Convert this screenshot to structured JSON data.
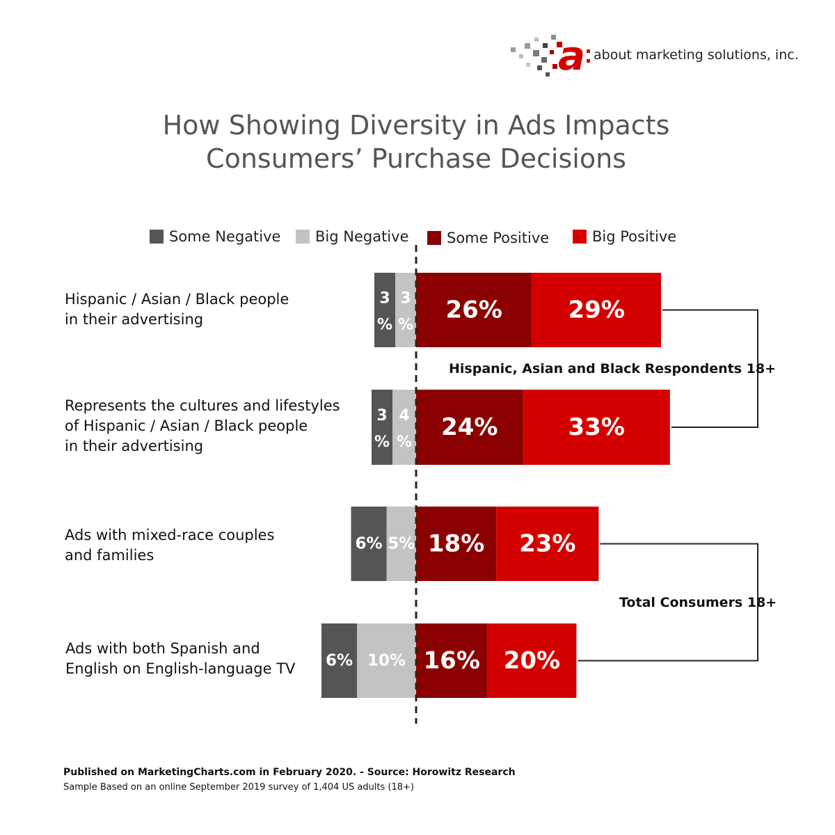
{
  "logo": {
    "text": "about marketing solutions, inc."
  },
  "title": {
    "line1": "How Showing Diversity in Ads Impacts",
    "line2": "Consumers’ Purchase Decisions"
  },
  "legend": [
    {
      "label": "Some Negative",
      "color": "#555555"
    },
    {
      "label": "Big Negative",
      "color": "#c3c3c3"
    },
    {
      "label": "Some Positive",
      "color": "#8b0000"
    },
    {
      "label": "Big Positive",
      "color": "#d40000"
    }
  ],
  "chart_data": {
    "type": "bar",
    "orientation": "horizontal-diverging",
    "categories": [
      "Hispanic / Asian / Black people in their advertising",
      "Represents the cultures and lifestyles of Hispanic / Asian / Black people in their advertising",
      "Ads with mixed-race couples and families",
      "Ads with both Spanish and English on English-language TV"
    ],
    "category_lines": [
      [
        "Hispanic / Asian / Black people",
        "in their advertising"
      ],
      [
        "Represents the cultures and lifestyles",
        "of Hispanic / Asian / Black people",
        "in their advertising"
      ],
      [
        "Ads with mixed-race couples",
        "and families"
      ],
      [
        "Ads with both Spanish and",
        "English on English-language TV"
      ]
    ],
    "series": [
      {
        "name": "Some Negative",
        "values": [
          3,
          3,
          6,
          6
        ],
        "color": "#555555"
      },
      {
        "name": "Big Negative",
        "values": [
          3,
          4,
          5,
          10
        ],
        "color": "#c3c3c3"
      },
      {
        "name": "Some Positive",
        "values": [
          26,
          24,
          18,
          16
        ],
        "color": "#8b0000"
      },
      {
        "name": "Big Positive",
        "values": [
          29,
          33,
          23,
          20
        ],
        "color": "#d40000"
      }
    ],
    "unit": "%",
    "groups": [
      {
        "label": "Hispanic, Asian and Black Respondents 18+",
        "rows": [
          0,
          1
        ]
      },
      {
        "label": "Total Consumers 18+",
        "rows": [
          2,
          3
        ]
      }
    ]
  },
  "footer": {
    "source": "Published on MarketingCharts.com in February 2020. - Source: Horowitz Research",
    "sample": "Sample  Based on an online September 2019 survey of 1,404 US adults (18+)"
  }
}
